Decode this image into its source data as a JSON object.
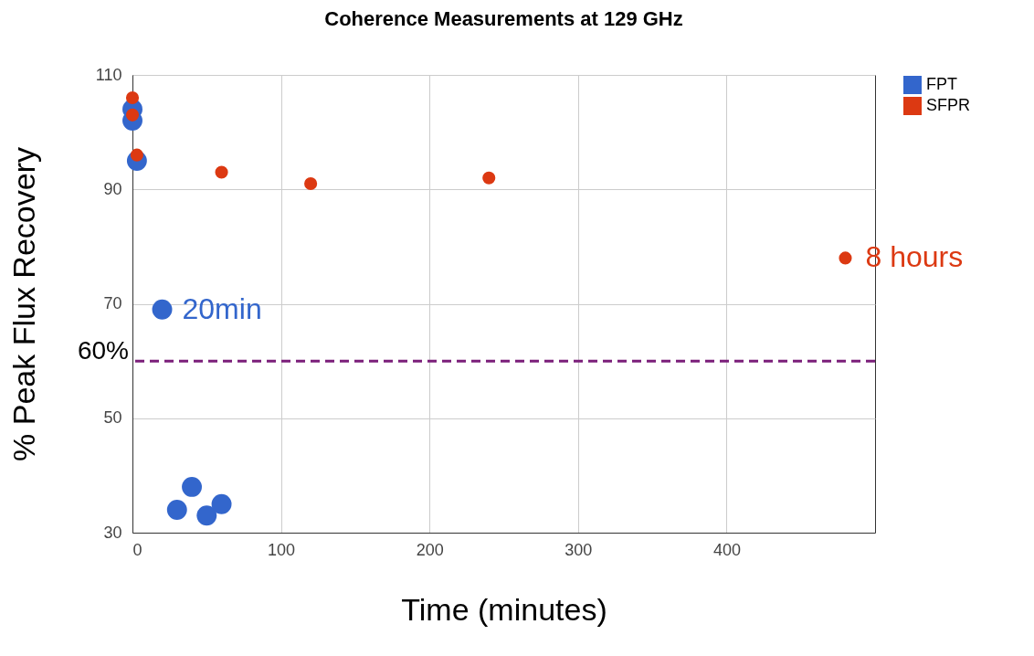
{
  "chart_data": {
    "type": "scatter",
    "title": "Coherence Measurements at 129 GHz",
    "xlabel": "Time (minutes)",
    "ylabel": "% Peak Flux Recovery",
    "series": [
      {
        "name": "FPT",
        "color": "#3366cc",
        "x": [
          0,
          0,
          3,
          20,
          30,
          40,
          50,
          60
        ],
        "values": [
          104,
          102,
          95,
          69,
          34,
          38,
          33,
          35
        ]
      },
      {
        "name": "SFPR",
        "color": "#dc3912",
        "x": [
          0,
          0,
          3,
          60,
          120,
          240,
          480
        ],
        "values": [
          106,
          103,
          96,
          93,
          91,
          92,
          78
        ]
      }
    ],
    "annotations": [
      {
        "text": "20min",
        "x": 20,
        "y": 69
      },
      {
        "text": "8 hours",
        "x": 480,
        "y": 78
      }
    ],
    "ref_lines": [
      {
        "axis": "y",
        "value": 60,
        "label": "60%",
        "color": "#7b1f7a",
        "line_style": "dashed"
      }
    ],
    "xlim": [
      0,
      500
    ],
    "xticks": [
      0,
      100,
      200,
      300,
      400
    ],
    "ylim": [
      30,
      110
    ],
    "yticks": [
      30,
      50,
      70,
      90,
      110
    ],
    "grid": true,
    "legend": "top right",
    "marker": "circle"
  }
}
